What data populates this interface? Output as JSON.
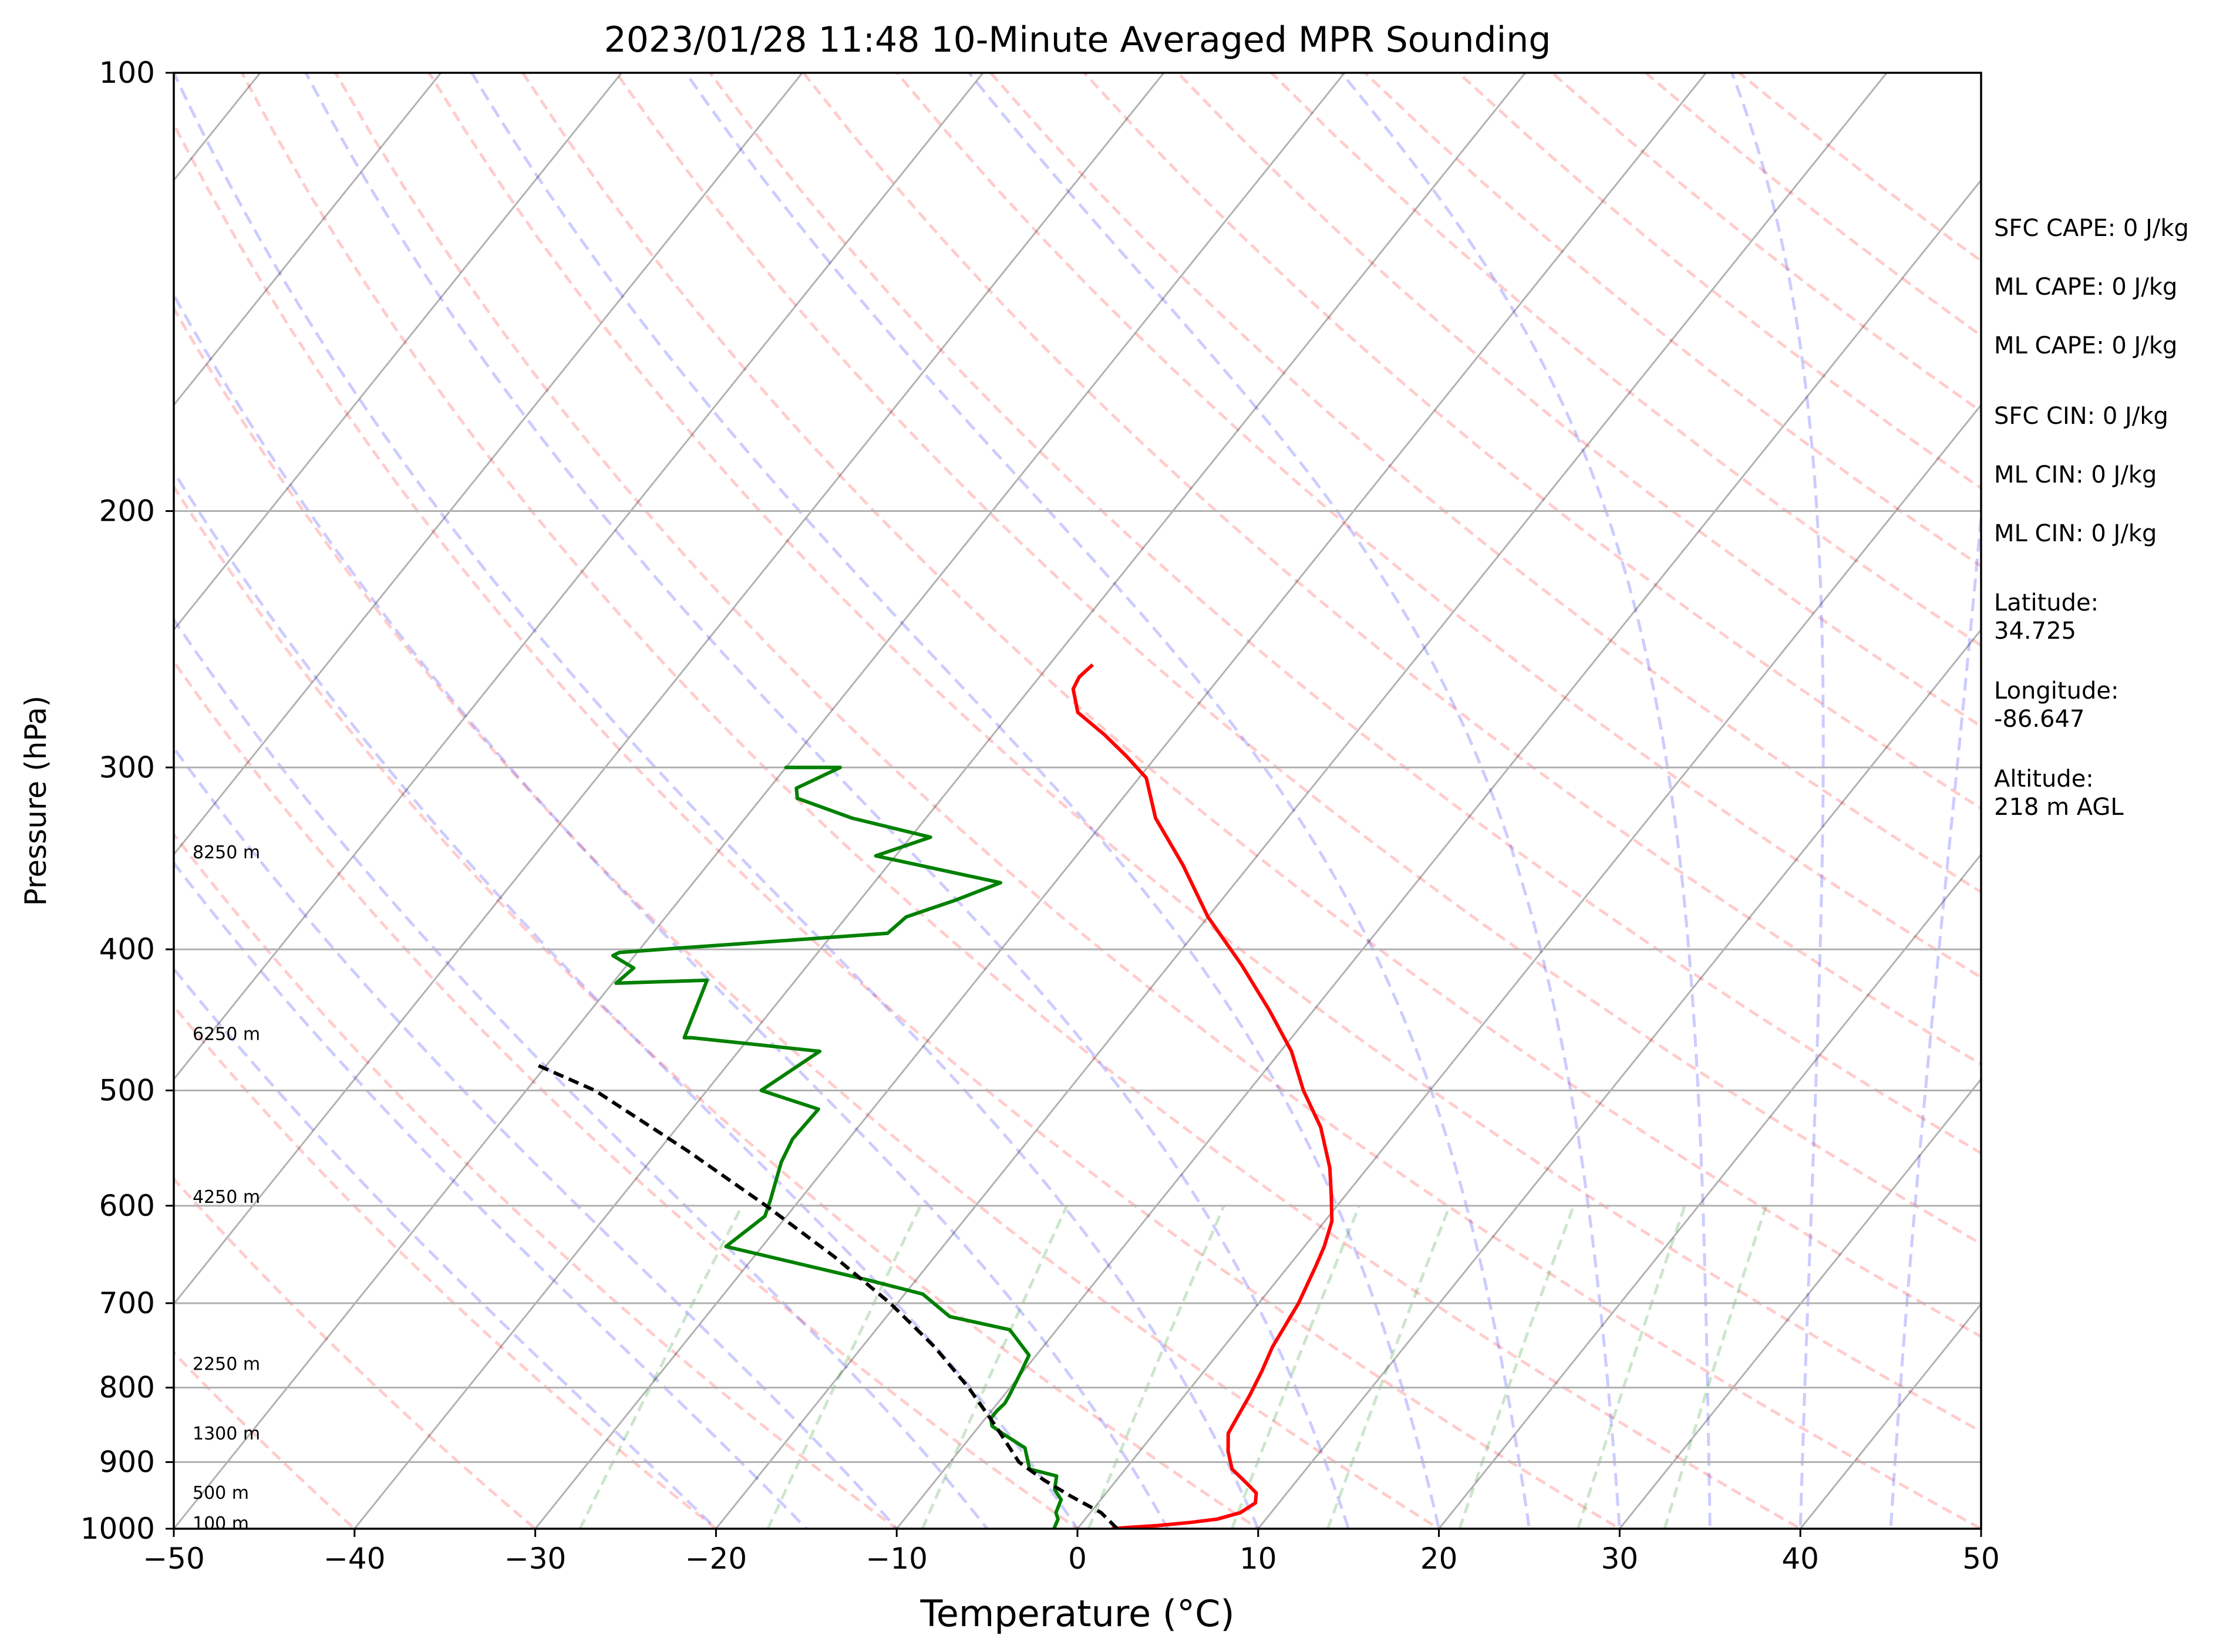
{
  "chart_data": {
    "type": "line",
    "subtype": "skew-t log-p",
    "title": "2023/01/28 11:48 10-Minute Averaged MPR Sounding",
    "xlabel": "Temperature (°C)",
    "ylabel": "Pressure (hPa)",
    "xlim": [
      -50,
      50
    ],
    "ylim": [
      1000,
      100
    ],
    "yscale": "log",
    "xticks": [
      "−50",
      "−40",
      "−30",
      "−20",
      "−10",
      "0",
      "10",
      "20",
      "30",
      "40",
      "50"
    ],
    "yticks": [
      "100",
      "200",
      "300",
      "400",
      "500",
      "600",
      "700",
      "800",
      "900",
      "1000"
    ],
    "grid": "horizontal at major pressure levels",
    "height_labels": [
      {
        "p": 997,
        "label": "100 m"
      },
      {
        "p": 950,
        "label": "500 m"
      },
      {
        "p": 865,
        "label": "1300 m"
      },
      {
        "p": 775,
        "label": "2250 m"
      },
      {
        "p": 595,
        "label": "4250 m"
      },
      {
        "p": 460,
        "label": "6250 m"
      },
      {
        "p": 345,
        "label": "8250 m"
      }
    ],
    "series": [
      {
        "kind": "temperature",
        "color": "#ff0000",
        "x": [
          1.9,
          2.8,
          4.3,
          6.0,
          7.3,
          8.3,
          8.7,
          8.3,
          7.3,
          5.9,
          4.9,
          4.1,
          3.9,
          3.6,
          3.2,
          2.7,
          2.2,
          1.5,
          1.1,
          0.4,
          -0.8,
          -2.1,
          -4.4,
          -7.0,
          -9.4,
          -12.5,
          -16.0,
          -20.0,
          -23.7,
          -27.3,
          -29.6,
          -31.6,
          -33.8,
          -36.3,
          -37.6,
          -37.8,
          -37.6
        ],
        "y": [
          1000,
          998,
          995,
          990,
          985,
          975,
          960,
          945,
          930,
          910,
          885,
          860,
          840,
          810,
          780,
          750,
          700,
          660,
          640,
          615,
          590,
          565,
          530,
          500,
          470,
          440,
          410,
          380,
          350,
          325,
          305,
          295,
          285,
          275,
          265,
          260,
          255
        ]
      },
      {
        "kind": "dewpoint",
        "color": "#008000",
        "x": [
          -1.3,
          -1.5,
          -1.9,
          -2.2,
          -3.0,
          -3.5,
          -5.3,
          -6.5,
          -8.4,
          -9.3,
          -9.7,
          -9.7,
          -9.6,
          -9.7,
          -10.1,
          -10.4,
          -12.6,
          -16.5,
          -19.0,
          -22.6,
          -32.0,
          -31.2,
          -31.6,
          -32.7,
          -33.1,
          -33.0,
          -37.0,
          -35.5,
          -43.2,
          -43.6,
          -44.9,
          -49.8,
          -49.5,
          -51.2,
          -51.0,
          -48.8,
          -37.0,
          -36.7,
          -34.7,
          -33.0,
          -41.1,
          -38.9,
          -44.1,
          -48.0,
          -48.5,
          -47.0,
          -47.2,
          -49.9,
          -50.0,
          -49.8,
          -50.0
        ],
        "y": [
          1000,
          985,
          975,
          955,
          940,
          920,
          910,
          880,
          860,
          850,
          840,
          830,
          820,
          810,
          780,
          760,
          730,
          715,
          690,
          675,
          640,
          610,
          595,
          560,
          540,
          515,
          500,
          470,
          460,
          460,
          420,
          422,
          412,
          404,
          402,
          400,
          390,
          380,
          370,
          360,
          345,
          335,
          325,
          315,
          310,
          300,
          300,
          300,
          300,
          300,
          300
        ]
      },
      {
        "kind": "parcel",
        "color": "#000000",
        "dashed": true,
        "x": [
          2.2,
          0.6,
          -1.8,
          -4.1,
          -6.2,
          -9.1,
          -12.3,
          -16.0,
          -20.4,
          -25.6,
          -31.6,
          -38.4,
          -46.2,
          -50.6
        ],
        "y": [
          1000,
          975,
          950,
          925,
          900,
          850,
          800,
          750,
          700,
          650,
          600,
          550,
          500,
          480
        ]
      }
    ],
    "reference_lines": {
      "dry_adiabats": {
        "color": "#ff0000",
        "opacity": 0.2,
        "dashed": true
      },
      "moist_adiabats": {
        "color": "#0000ff",
        "opacity": 0.2,
        "dashed": true
      },
      "mixing_ratio": {
        "color": "#008000",
        "opacity": 0.2,
        "dashed": true
      },
      "isotherms": {
        "color": "#000000",
        "opacity": 0.3,
        "dashed": false
      }
    }
  },
  "annotations": [
    {
      "text": "SFC CAPE: 0 J/kg"
    },
    {
      "text": "ML CAPE: 0 J/kg"
    },
    {
      "text": "ML CAPE: 0 J/kg"
    },
    {
      "text": "SFC CIN: 0 J/kg"
    },
    {
      "text": "ML CIN: 0 J/kg"
    },
    {
      "text": "ML CIN: 0 J/kg"
    },
    {
      "text": "Latitude:",
      "value": "34.725"
    },
    {
      "text": "Longitude:",
      "value": "-86.647"
    },
    {
      "text": "Altitude:",
      "value": "218 m AGL"
    }
  ]
}
